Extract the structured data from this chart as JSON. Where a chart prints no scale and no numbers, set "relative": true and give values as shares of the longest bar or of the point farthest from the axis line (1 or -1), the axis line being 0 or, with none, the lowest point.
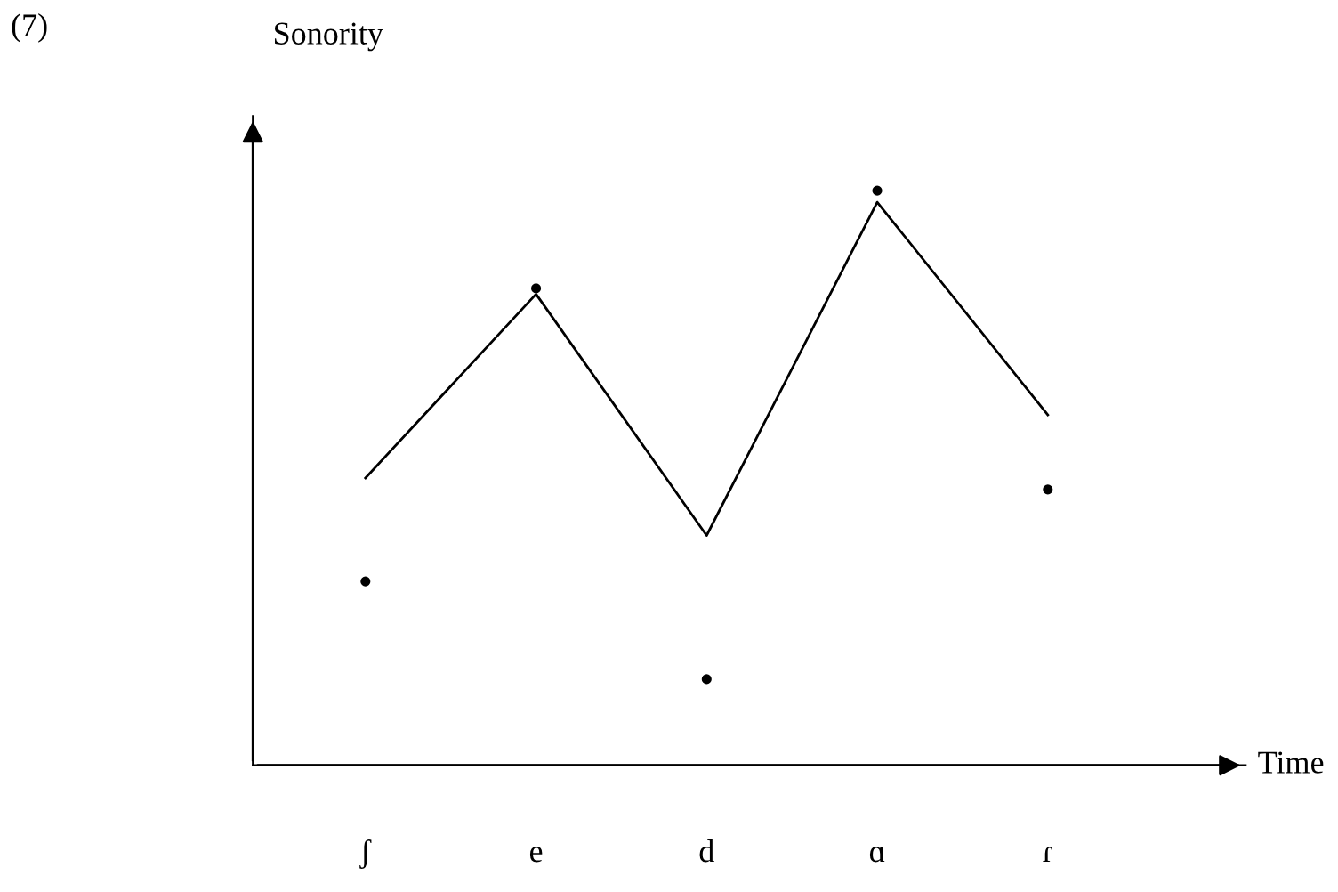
{
  "chart_data": {
    "type": "scatter",
    "relative": true,
    "ylabel": "Sonority",
    "xlabel": "Time",
    "annotations": [
      "(7)"
    ],
    "categories": [
      "ʃ",
      "e",
      "d",
      "ɑ",
      "ɾ"
    ],
    "series": [
      {
        "color": "#000000",
        "marker": "circle",
        "values": [
          0.32,
          0.83,
          0.15,
          1.0,
          0.48
        ]
      },
      {
        "type": "line",
        "color": "#000000",
        "marker": "none",
        "line_style": "solid",
        "values": [
          0.5,
          0.82,
          0.4,
          0.98,
          0.61
        ]
      }
    ],
    "grid": false,
    "legend": false
  }
}
